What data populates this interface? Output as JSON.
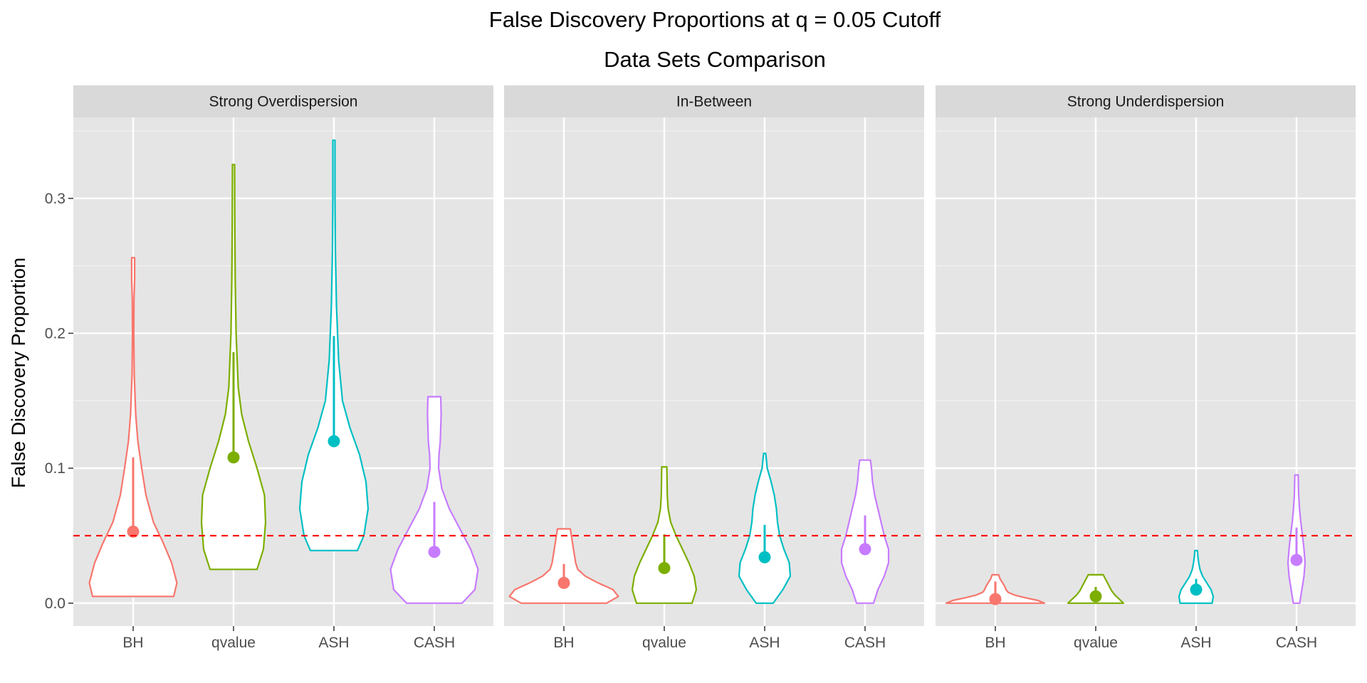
{
  "chart_data": {
    "type": "violin",
    "title": "False Discovery Proportions at q = 0.05 Cutoff",
    "subtitle": "Data Sets Comparison",
    "ylabel": "False Discovery Proportion",
    "xlabel": "",
    "ylim": [
      -0.017,
      0.36
    ],
    "y_ticks": [
      0.0,
      0.1,
      0.2,
      0.3
    ],
    "y_tick_labels": [
      "0.0",
      "0.1",
      "0.2",
      "0.3"
    ],
    "y_minor_ticks": [
      0.05,
      0.15,
      0.25,
      0.35
    ],
    "categories": [
      "BH",
      "qvalue",
      "ASH",
      "CASH"
    ],
    "colors": {
      "BH": "#F8766D",
      "qvalue": "#7CAE00",
      "ASH": "#00BFC4",
      "CASH": "#C77CFF"
    },
    "reference_line": {
      "y": 0.05,
      "color": "#FF0000",
      "style": "dashed"
    },
    "grid": true,
    "panel_background": "#E5E5E5",
    "strip_background": "#D9D9D9",
    "panels": [
      {
        "label": "Strong Overdispersion",
        "series": [
          {
            "category": "BH",
            "mean": 0.053,
            "interval": [
              0.053,
              0.108
            ],
            "violin": [
              [
                0.005,
                0.19
              ],
              [
                0.015,
                0.205
              ],
              [
                0.03,
                0.18
              ],
              [
                0.045,
                0.14
              ],
              [
                0.06,
                0.095
              ],
              [
                0.08,
                0.06
              ],
              [
                0.1,
                0.04
              ],
              [
                0.12,
                0.022
              ],
              [
                0.14,
                0.012
              ],
              [
                0.17,
                0.005
              ],
              [
                0.2,
                0.003
              ],
              [
                0.225,
                0.004
              ],
              [
                0.24,
                0.007
              ],
              [
                0.256,
                0.007
              ]
            ]
          },
          {
            "category": "qvalue",
            "mean": 0.108,
            "interval": [
              0.108,
              0.186
            ],
            "violin": [
              [
                0.025,
                0.11
              ],
              [
                0.04,
                0.14
              ],
              [
                0.06,
                0.15
              ],
              [
                0.08,
                0.145
              ],
              [
                0.1,
                0.11
              ],
              [
                0.12,
                0.07
              ],
              [
                0.14,
                0.038
              ],
              [
                0.16,
                0.022
              ],
              [
                0.2,
                0.012
              ],
              [
                0.24,
                0.008
              ],
              [
                0.28,
                0.006
              ],
              [
                0.325,
                0.005
              ]
            ]
          },
          {
            "category": "ASH",
            "mean": 0.12,
            "interval": [
              0.12,
              0.198
            ],
            "violin": [
              [
                0.039,
                0.11
              ],
              [
                0.05,
                0.14
              ],
              [
                0.07,
                0.16
              ],
              [
                0.09,
                0.15
              ],
              [
                0.11,
                0.12
              ],
              [
                0.13,
                0.075
              ],
              [
                0.15,
                0.04
              ],
              [
                0.18,
                0.022
              ],
              [
                0.22,
                0.012
              ],
              [
                0.26,
                0.007
              ],
              [
                0.3,
                0.005
              ],
              [
                0.343,
                0.005
              ]
            ]
          },
          {
            "category": "CASH",
            "mean": 0.038,
            "interval": [
              0.038,
              0.075
            ],
            "violin": [
              [
                0.0,
                0.13
              ],
              [
                0.01,
                0.19
              ],
              [
                0.025,
                0.205
              ],
              [
                0.04,
                0.17
              ],
              [
                0.055,
                0.12
              ],
              [
                0.07,
                0.07
              ],
              [
                0.085,
                0.035
              ],
              [
                0.1,
                0.02
              ],
              [
                0.11,
                0.022
              ],
              [
                0.12,
                0.028
              ],
              [
                0.13,
                0.03
              ],
              [
                0.14,
                0.032
              ],
              [
                0.153,
                0.03
              ]
            ]
          }
        ]
      },
      {
        "label": "In-Between",
        "series": [
          {
            "category": "BH",
            "mean": 0.015,
            "interval": [
              0.015,
              0.029
            ],
            "violin": [
              [
                0.0,
                0.2
              ],
              [
                0.005,
                0.255
              ],
              [
                0.01,
                0.23
              ],
              [
                0.015,
                0.16
              ],
              [
                0.02,
                0.1
              ],
              [
                0.025,
                0.065
              ],
              [
                0.03,
                0.055
              ],
              [
                0.035,
                0.05
              ],
              [
                0.04,
                0.045
              ],
              [
                0.045,
                0.04
              ],
              [
                0.05,
                0.035
              ],
              [
                0.055,
                0.03
              ]
            ]
          },
          {
            "category": "qvalue",
            "mean": 0.026,
            "interval": [
              0.026,
              0.051
            ],
            "violin": [
              [
                0.0,
                0.13
              ],
              [
                0.01,
                0.15
              ],
              [
                0.02,
                0.14
              ],
              [
                0.03,
                0.115
              ],
              [
                0.04,
                0.085
              ],
              [
                0.05,
                0.055
              ],
              [
                0.06,
                0.03
              ],
              [
                0.07,
                0.018
              ],
              [
                0.08,
                0.014
              ],
              [
                0.09,
                0.013
              ],
              [
                0.101,
                0.012
              ]
            ]
          },
          {
            "category": "ASH",
            "mean": 0.034,
            "interval": [
              0.034,
              0.058
            ],
            "violin": [
              [
                0.0,
                0.04
              ],
              [
                0.01,
                0.085
              ],
              [
                0.02,
                0.12
              ],
              [
                0.03,
                0.115
              ],
              [
                0.04,
                0.09
              ],
              [
                0.05,
                0.07
              ],
              [
                0.06,
                0.06
              ],
              [
                0.07,
                0.055
              ],
              [
                0.08,
                0.045
              ],
              [
                0.09,
                0.03
              ],
              [
                0.1,
                0.012
              ],
              [
                0.111,
                0.005
              ]
            ]
          },
          {
            "category": "CASH",
            "mean": 0.04,
            "interval": [
              0.04,
              0.065
            ],
            "violin": [
              [
                0.0,
                0.04
              ],
              [
                0.01,
                0.06
              ],
              [
                0.02,
                0.09
              ],
              [
                0.03,
                0.11
              ],
              [
                0.04,
                0.11
              ],
              [
                0.05,
                0.09
              ],
              [
                0.06,
                0.075
              ],
              [
                0.07,
                0.06
              ],
              [
                0.08,
                0.045
              ],
              [
                0.09,
                0.035
              ],
              [
                0.1,
                0.03
              ],
              [
                0.106,
                0.025
              ]
            ]
          }
        ]
      },
      {
        "label": "Strong Underdispersion",
        "series": [
          {
            "category": "BH",
            "mean": 0.003,
            "interval": [
              0.003,
              0.016
            ],
            "violin": [
              [
                0.0,
                0.23
              ],
              [
                0.002,
                0.2
              ],
              [
                0.004,
                0.14
              ],
              [
                0.006,
                0.09
              ],
              [
                0.008,
                0.06
              ],
              [
                0.01,
                0.05
              ],
              [
                0.012,
                0.045
              ],
              [
                0.014,
                0.038
              ],
              [
                0.016,
                0.03
              ],
              [
                0.018,
                0.022
              ],
              [
                0.021,
                0.015
              ]
            ]
          },
          {
            "category": "qvalue",
            "mean": 0.005,
            "interval": [
              0.005,
              0.012
            ],
            "violin": [
              [
                0.0,
                0.13
              ],
              [
                0.003,
                0.11
              ],
              [
                0.006,
                0.09
              ],
              [
                0.009,
                0.075
              ],
              [
                0.012,
                0.065
              ],
              [
                0.015,
                0.055
              ],
              [
                0.018,
                0.045
              ],
              [
                0.021,
                0.035
              ]
            ]
          },
          {
            "category": "ASH",
            "mean": 0.01,
            "interval": [
              0.01,
              0.018
            ],
            "violin": [
              [
                0.0,
                0.075
              ],
              [
                0.005,
                0.08
              ],
              [
                0.01,
                0.07
              ],
              [
                0.015,
                0.05
              ],
              [
                0.02,
                0.03
              ],
              [
                0.025,
                0.018
              ],
              [
                0.03,
                0.012
              ],
              [
                0.035,
                0.008
              ],
              [
                0.039,
                0.006
              ]
            ]
          },
          {
            "category": "CASH",
            "mean": 0.032,
            "interval": [
              0.032,
              0.056
            ],
            "violin": [
              [
                0.0,
                0.015
              ],
              [
                0.01,
                0.025
              ],
              [
                0.02,
                0.035
              ],
              [
                0.03,
                0.04
              ],
              [
                0.04,
                0.035
              ],
              [
                0.05,
                0.028
              ],
              [
                0.06,
                0.02
              ],
              [
                0.07,
                0.014
              ],
              [
                0.08,
                0.01
              ],
              [
                0.095,
                0.008
              ]
            ]
          }
        ]
      }
    ]
  }
}
